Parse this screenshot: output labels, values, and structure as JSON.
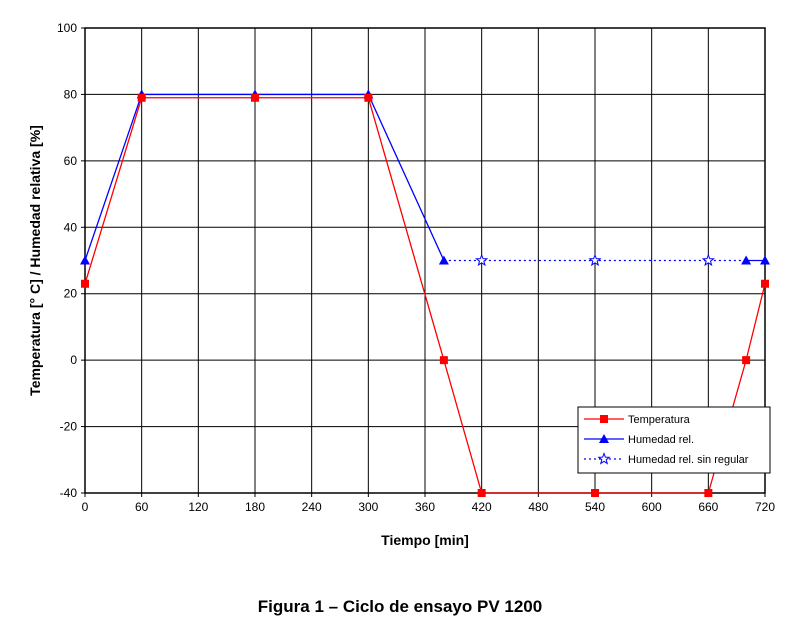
{
  "chart_data": {
    "type": "line",
    "caption": "Figura 1 – Ciclo de ensayo  PV 1200",
    "xlabel": "Tiempo [min]",
    "ylabel": "Temperatura [° C] / Humedad relativa [%]",
    "xlim": [
      0,
      720
    ],
    "ylim": [
      -40,
      100
    ],
    "x_ticks": [
      0,
      60,
      120,
      180,
      240,
      300,
      360,
      420,
      480,
      540,
      600,
      660,
      720
    ],
    "y_ticks": [
      -40,
      -20,
      0,
      20,
      40,
      60,
      80,
      100
    ],
    "grid": true,
    "legend_position": "bottom-right",
    "series": [
      {
        "name": "Temperatura",
        "color": "#ff0000",
        "marker": "square",
        "line_style": "solid",
        "points": [
          [
            0,
            23
          ],
          [
            60,
            79
          ],
          [
            180,
            79
          ],
          [
            300,
            79
          ],
          [
            380,
            0
          ],
          [
            420,
            -40
          ],
          [
            540,
            -40
          ],
          [
            660,
            -40
          ],
          [
            700,
            0
          ],
          [
            720,
            23
          ]
        ]
      },
      {
        "name": "Humedad rel.",
        "color": "#0000ff",
        "marker": "triangle",
        "line_style": "solid",
        "segments": [
          [
            [
              0,
              30
            ],
            [
              60,
              80
            ],
            [
              180,
              80
            ],
            [
              300,
              80
            ],
            [
              380,
              30
            ]
          ],
          [
            [
              700,
              30
            ],
            [
              720,
              30
            ]
          ]
        ]
      },
      {
        "name": "Humedad rel. sin regular",
        "color": "#0000ff",
        "marker": "star-open",
        "line_style": "dotted",
        "points": [
          [
            380,
            30
          ],
          [
            420,
            30
          ],
          [
            540,
            30
          ],
          [
            660,
            30
          ],
          [
            700,
            30
          ]
        ],
        "marker_points": [
          [
            420,
            30
          ],
          [
            540,
            30
          ],
          [
            660,
            30
          ]
        ]
      }
    ]
  }
}
